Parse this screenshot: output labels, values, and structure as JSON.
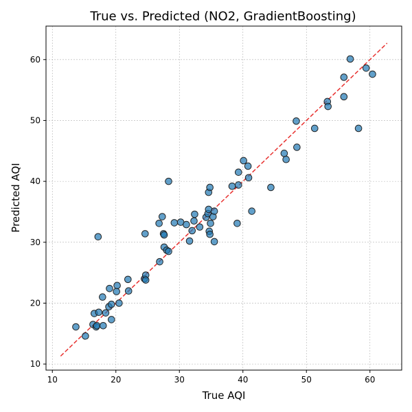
{
  "chart_data": {
    "type": "scatter",
    "title": "True vs. Predicted (NO2, GradientBoosting)",
    "xlabel": "True AQI",
    "ylabel": "Predicted AQI",
    "xlim": [
      9,
      65
    ],
    "ylim": [
      9,
      65.5
    ],
    "xticks": [
      10,
      20,
      30,
      40,
      50,
      60
    ],
    "yticks": [
      10,
      20,
      30,
      40,
      50,
      60
    ],
    "grid": true,
    "reference_line": {
      "from": [
        11.3,
        11.3
      ],
      "to": [
        62.7,
        62.7
      ],
      "color": "#e8302e"
    },
    "point_color": "#1f77b4",
    "points": [
      [
        13.7,
        16.1
      ],
      [
        15.2,
        14.6
      ],
      [
        16.4,
        16.5
      ],
      [
        16.6,
        18.3
      ],
      [
        16.9,
        16.1
      ],
      [
        17.0,
        16.3
      ],
      [
        17.2,
        30.9
      ],
      [
        17.3,
        18.5
      ],
      [
        17.9,
        21.0
      ],
      [
        18.0,
        16.3
      ],
      [
        18.4,
        18.4
      ],
      [
        18.9,
        19.4
      ],
      [
        19.0,
        22.4
      ],
      [
        19.3,
        19.8
      ],
      [
        19.3,
        17.3
      ],
      [
        20.1,
        21.9
      ],
      [
        20.2,
        22.9
      ],
      [
        20.5,
        20.0
      ],
      [
        21.9,
        23.9
      ],
      [
        22.0,
        22.0
      ],
      [
        24.5,
        24.0
      ],
      [
        24.6,
        31.4
      ],
      [
        24.7,
        24.6
      ],
      [
        24.7,
        23.8
      ],
      [
        26.8,
        33.1
      ],
      [
        26.9,
        26.8
      ],
      [
        27.3,
        34.2
      ],
      [
        27.5,
        31.4
      ],
      [
        27.6,
        31.2
      ],
      [
        27.6,
        29.2
      ],
      [
        28.0,
        28.7
      ],
      [
        28.3,
        40.0
      ],
      [
        28.3,
        28.5
      ],
      [
        29.2,
        33.2
      ],
      [
        30.2,
        33.3
      ],
      [
        31.1,
        32.9
      ],
      [
        31.6,
        30.2
      ],
      [
        32.0,
        31.9
      ],
      [
        32.3,
        33.5
      ],
      [
        32.4,
        34.6
      ],
      [
        33.2,
        32.5
      ],
      [
        34.2,
        34.1
      ],
      [
        34.5,
        34.7
      ],
      [
        34.6,
        38.2
      ],
      [
        34.6,
        35.4
      ],
      [
        34.7,
        31.8
      ],
      [
        34.8,
        39.0
      ],
      [
        34.8,
        31.3
      ],
      [
        34.9,
        33.1
      ],
      [
        35.3,
        34.2
      ],
      [
        35.5,
        35.1
      ],
      [
        35.5,
        30.1
      ],
      [
        38.3,
        39.2
      ],
      [
        39.1,
        33.1
      ],
      [
        39.3,
        41.5
      ],
      [
        39.3,
        39.4
      ],
      [
        40.1,
        43.4
      ],
      [
        40.8,
        42.5
      ],
      [
        40.9,
        40.6
      ],
      [
        41.4,
        35.1
      ],
      [
        44.4,
        39.0
      ],
      [
        46.5,
        44.6
      ],
      [
        46.8,
        43.6
      ],
      [
        48.4,
        49.9
      ],
      [
        48.5,
        45.6
      ],
      [
        51.3,
        48.7
      ],
      [
        53.3,
        53.1
      ],
      [
        53.4,
        52.3
      ],
      [
        55.9,
        57.1
      ],
      [
        55.9,
        53.9
      ],
      [
        56.9,
        60.1
      ],
      [
        58.2,
        48.7
      ],
      [
        59.4,
        58.6
      ],
      [
        60.4,
        57.6
      ]
    ]
  }
}
